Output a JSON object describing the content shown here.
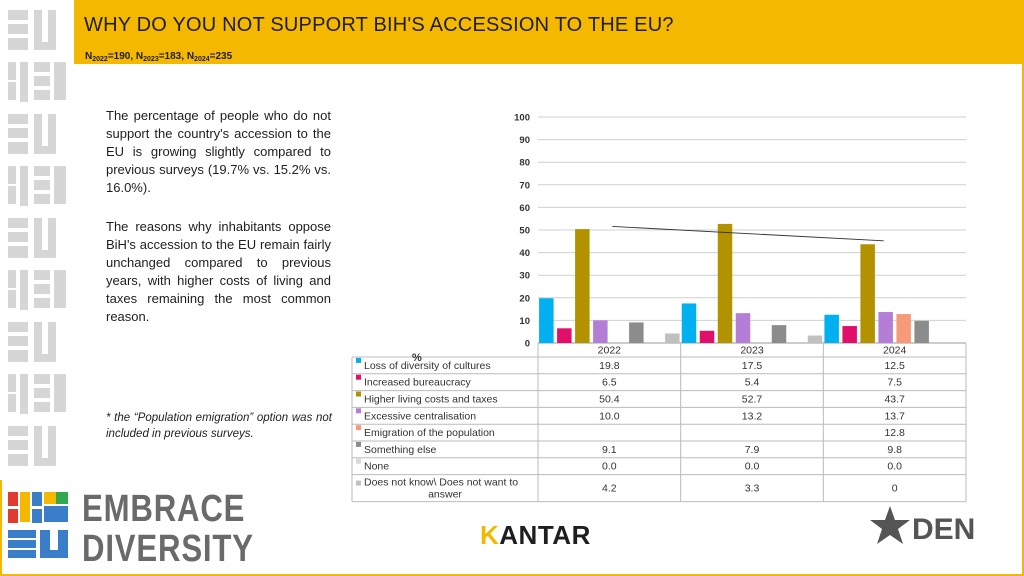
{
  "header": {
    "title": "WHY DO YOU NOT SUPPORT BIH'S ACCESSION TO THE EU?",
    "sample_sizes": [
      {
        "label": "N",
        "sub": "2022",
        "value": "=190, "
      },
      {
        "label": "N",
        "sub": "2023",
        "value": "=183, "
      },
      {
        "label": "N",
        "sub": "2024",
        "value": "=235"
      }
    ]
  },
  "text": {
    "para1": "The percentage of people who do not support the country's accession to the EU is growing slightly compared to previous surveys (19.7% vs. 15.2% vs. 16.0%).",
    "para2": "The reasons why inhabitants oppose BiH's accession to the EU remain fairly unchanged compared to previous years, with higher costs of living and taxes remaining the most common reason.",
    "note": "* the “Population emigration” option was not included in previous surveys.",
    "unit": "%"
  },
  "logos": {
    "embrace_line1": "EMBRACE",
    "embrace_line2": "DIVERSITY",
    "kantar_k": "K",
    "kantar_rest": "ANTAR",
    "den": "DEN"
  },
  "chart_data": {
    "type": "bar",
    "categories": [
      "2022",
      "2023",
      "2024"
    ],
    "ylim": [
      0,
      100
    ],
    "yticks": [
      0,
      10,
      20,
      30,
      40,
      50,
      60,
      70,
      80,
      90,
      100
    ],
    "grid": true,
    "legend": "table-below",
    "series": [
      {
        "name": "Loss of diversity of cultures",
        "color": "#00b0f0",
        "values": [
          19.8,
          17.5,
          12.5
        ],
        "labels": [
          "19.8",
          "17.5",
          "12.5"
        ]
      },
      {
        "name": "Increased bureaucracy",
        "color": "#e0106a",
        "values": [
          6.5,
          5.4,
          7.5
        ],
        "labels": [
          "6.5",
          "5.4",
          "7.5"
        ]
      },
      {
        "name": "Higher living costs and taxes",
        "color": "#b39200",
        "values": [
          50.4,
          52.7,
          43.7
        ],
        "labels": [
          "50.4",
          "52.7",
          "43.7"
        ]
      },
      {
        "name": "Excessive centralisation",
        "color": "#b57ed6",
        "values": [
          10.0,
          13.2,
          13.7
        ],
        "labels": [
          "10.0",
          "13.2",
          "13.7"
        ]
      },
      {
        "name": "Emigration of the population",
        "color": "#f79a7a",
        "values": [
          null,
          null,
          12.8
        ],
        "labels": [
          "",
          "",
          "12.8"
        ]
      },
      {
        "name": "Something else",
        "color": "#8c8c8c",
        "values": [
          9.1,
          7.9,
          9.8
        ],
        "labels": [
          "9.1",
          "7.9",
          "9.8"
        ]
      },
      {
        "name": "None",
        "color": "#d9d9d9",
        "values": [
          0.0,
          0.0,
          0.0
        ],
        "labels": [
          "0.0",
          "0.0",
          "0.0"
        ]
      },
      {
        "name": "Does not know\\ Does not want to answer",
        "color": "#c0c0c0",
        "values": [
          4.2,
          3.3,
          0
        ],
        "labels": [
          "4.2",
          "3.3",
          "0"
        ]
      }
    ],
    "trendline": {
      "series": "Higher living costs and taxes"
    }
  }
}
